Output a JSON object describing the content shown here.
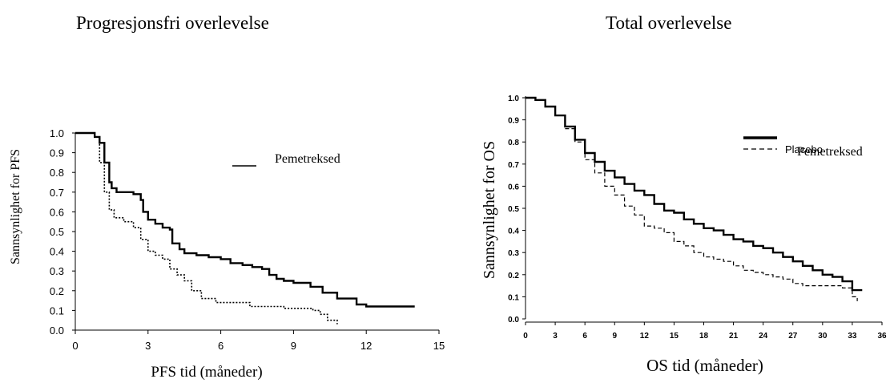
{
  "titles": {
    "left": "Progresjonsfri overlevelse",
    "right": "Total overlevelse"
  },
  "chart_data": [
    {
      "type": "line",
      "title": "Progresjonsfri overlevelse",
      "xlabel": "PFS tid (måneder)",
      "ylabel": "Sannsynlighet for PFS",
      "xlim": [
        0,
        15
      ],
      "ylim": [
        0,
        1.0
      ],
      "xticks": [
        "0",
        "3",
        "6",
        "9",
        "12",
        "15"
      ],
      "yticks": [
        "0.0",
        "0.1",
        "0.2",
        "0.3",
        "0.4",
        "0.5",
        "0.6",
        "0.7",
        "0.8",
        "0.9",
        "1.0"
      ],
      "legend": [
        {
          "label": "Pemetreksed",
          "style": "solid"
        }
      ],
      "series": [
        {
          "name": "Pemetreksed",
          "style": "solid-thick",
          "x": [
            0,
            0.8,
            1.0,
            1.2,
            1.4,
            1.5,
            1.7,
            2.0,
            2.4,
            2.7,
            2.8,
            3.0,
            3.3,
            3.6,
            3.9,
            4.0,
            4.3,
            4.5,
            5.0,
            5.5,
            6.0,
            6.4,
            6.9,
            7.3,
            7.7,
            8.0,
            8.3,
            8.6,
            9.0,
            9.7,
            10.2,
            10.8,
            11.6,
            12.0,
            14.0
          ],
          "y": [
            1.0,
            0.98,
            0.95,
            0.85,
            0.75,
            0.72,
            0.7,
            0.7,
            0.69,
            0.66,
            0.6,
            0.56,
            0.54,
            0.52,
            0.51,
            0.44,
            0.41,
            0.39,
            0.38,
            0.37,
            0.36,
            0.34,
            0.33,
            0.32,
            0.31,
            0.28,
            0.26,
            0.25,
            0.24,
            0.22,
            0.19,
            0.16,
            0.13,
            0.12,
            0.12
          ]
        },
        {
          "name": "",
          "style": "dotted",
          "x": [
            0,
            0.8,
            1.0,
            1.2,
            1.4,
            1.6,
            2.0,
            2.4,
            2.7,
            3.0,
            3.3,
            3.6,
            3.9,
            4.2,
            4.5,
            4.8,
            5.2,
            5.8,
            6.5,
            7.2,
            8.0,
            8.6,
            9.0,
            9.8,
            10.1,
            10.4,
            10.8
          ],
          "y": [
            1.0,
            0.98,
            0.85,
            0.7,
            0.61,
            0.57,
            0.55,
            0.52,
            0.46,
            0.4,
            0.38,
            0.36,
            0.31,
            0.28,
            0.25,
            0.2,
            0.16,
            0.14,
            0.14,
            0.12,
            0.12,
            0.11,
            0.11,
            0.1,
            0.08,
            0.05,
            0.03
          ]
        }
      ]
    },
    {
      "type": "line",
      "title": "Total overlevelse",
      "xlabel": "OS tid (måneder)",
      "ylabel": "Sannsynlighet for OS",
      "xlim": [
        0,
        36
      ],
      "ylim": [
        0,
        1.0
      ],
      "xticks": [
        "0",
        "3",
        "6",
        "9",
        "12",
        "15",
        "18",
        "21",
        "24",
        "27",
        "30",
        "33",
        "36"
      ],
      "yticks": [
        "0.0",
        "0.1",
        "0.2",
        "0.3",
        "0.4",
        "0.5",
        "0.6",
        "0.7",
        "0.8",
        "0.9",
        "1.0"
      ],
      "legend": [
        {
          "label": "Pemetreksed",
          "style": "solid"
        },
        {
          "label": "Placebo",
          "style": "dashed"
        }
      ],
      "series": [
        {
          "name": "Pemetreksed",
          "style": "solid-thick",
          "x": [
            0,
            1,
            2,
            3,
            4,
            5,
            6,
            7,
            8,
            9,
            10,
            11,
            12,
            13,
            14,
            15,
            16,
            17,
            18,
            19,
            20,
            21,
            22,
            23,
            24,
            25,
            26,
            27,
            28,
            29,
            30,
            31,
            32,
            33,
            34
          ],
          "y": [
            1.0,
            0.99,
            0.96,
            0.92,
            0.87,
            0.81,
            0.75,
            0.71,
            0.67,
            0.64,
            0.61,
            0.58,
            0.56,
            0.52,
            0.49,
            0.48,
            0.45,
            0.43,
            0.41,
            0.4,
            0.38,
            0.36,
            0.35,
            0.33,
            0.32,
            0.3,
            0.28,
            0.26,
            0.24,
            0.22,
            0.2,
            0.19,
            0.17,
            0.13,
            0.13
          ]
        },
        {
          "name": "Placebo",
          "style": "dashed",
          "x": [
            0,
            1,
            2,
            3,
            4,
            5,
            6,
            7,
            8,
            9,
            10,
            11,
            12,
            13,
            14,
            15,
            16,
            17,
            18,
            19,
            20,
            21,
            22,
            23,
            24,
            25,
            26,
            27,
            28,
            29,
            30,
            31,
            32,
            33,
            33.5
          ],
          "y": [
            1.0,
            0.99,
            0.96,
            0.92,
            0.86,
            0.8,
            0.72,
            0.66,
            0.6,
            0.56,
            0.51,
            0.47,
            0.42,
            0.41,
            0.39,
            0.35,
            0.33,
            0.3,
            0.28,
            0.27,
            0.26,
            0.24,
            0.22,
            0.21,
            0.2,
            0.19,
            0.18,
            0.16,
            0.15,
            0.15,
            0.15,
            0.15,
            0.14,
            0.1,
            0.08
          ]
        }
      ]
    }
  ]
}
